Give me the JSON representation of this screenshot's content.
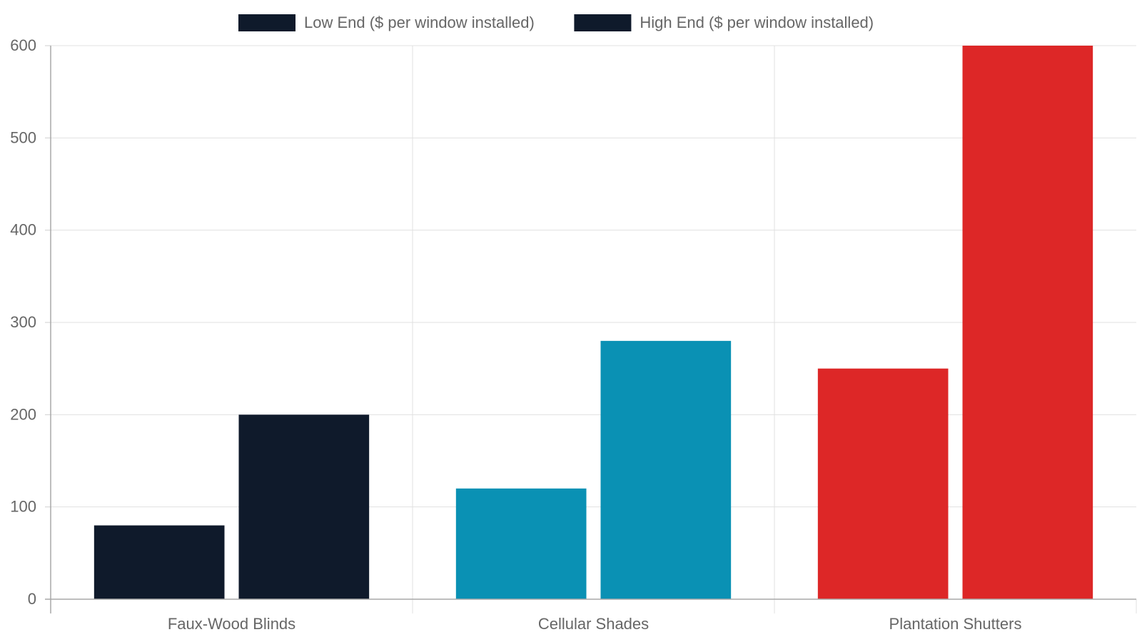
{
  "chart_data": {
    "type": "bar",
    "categories": [
      "Faux-Wood Blinds",
      "Cellular Shades",
      "Plantation Shutters"
    ],
    "series": [
      {
        "name": "Low End ($ per window installed)",
        "values": [
          80,
          120,
          250
        ]
      },
      {
        "name": "High End ($ per window installed)",
        "values": [
          200,
          280,
          600
        ]
      }
    ],
    "category_colors": [
      "#0f1a2b",
      "#0a91b4",
      "#dd2727"
    ],
    "legend_colors": [
      "#0f1a2b",
      "#0f1a2b"
    ],
    "ylim": [
      0,
      600
    ],
    "yticks": [
      0,
      100,
      200,
      300,
      400,
      500,
      600
    ],
    "grid": true,
    "legend_position": "top-center",
    "title": "",
    "xlabel": "",
    "ylabel": ""
  }
}
